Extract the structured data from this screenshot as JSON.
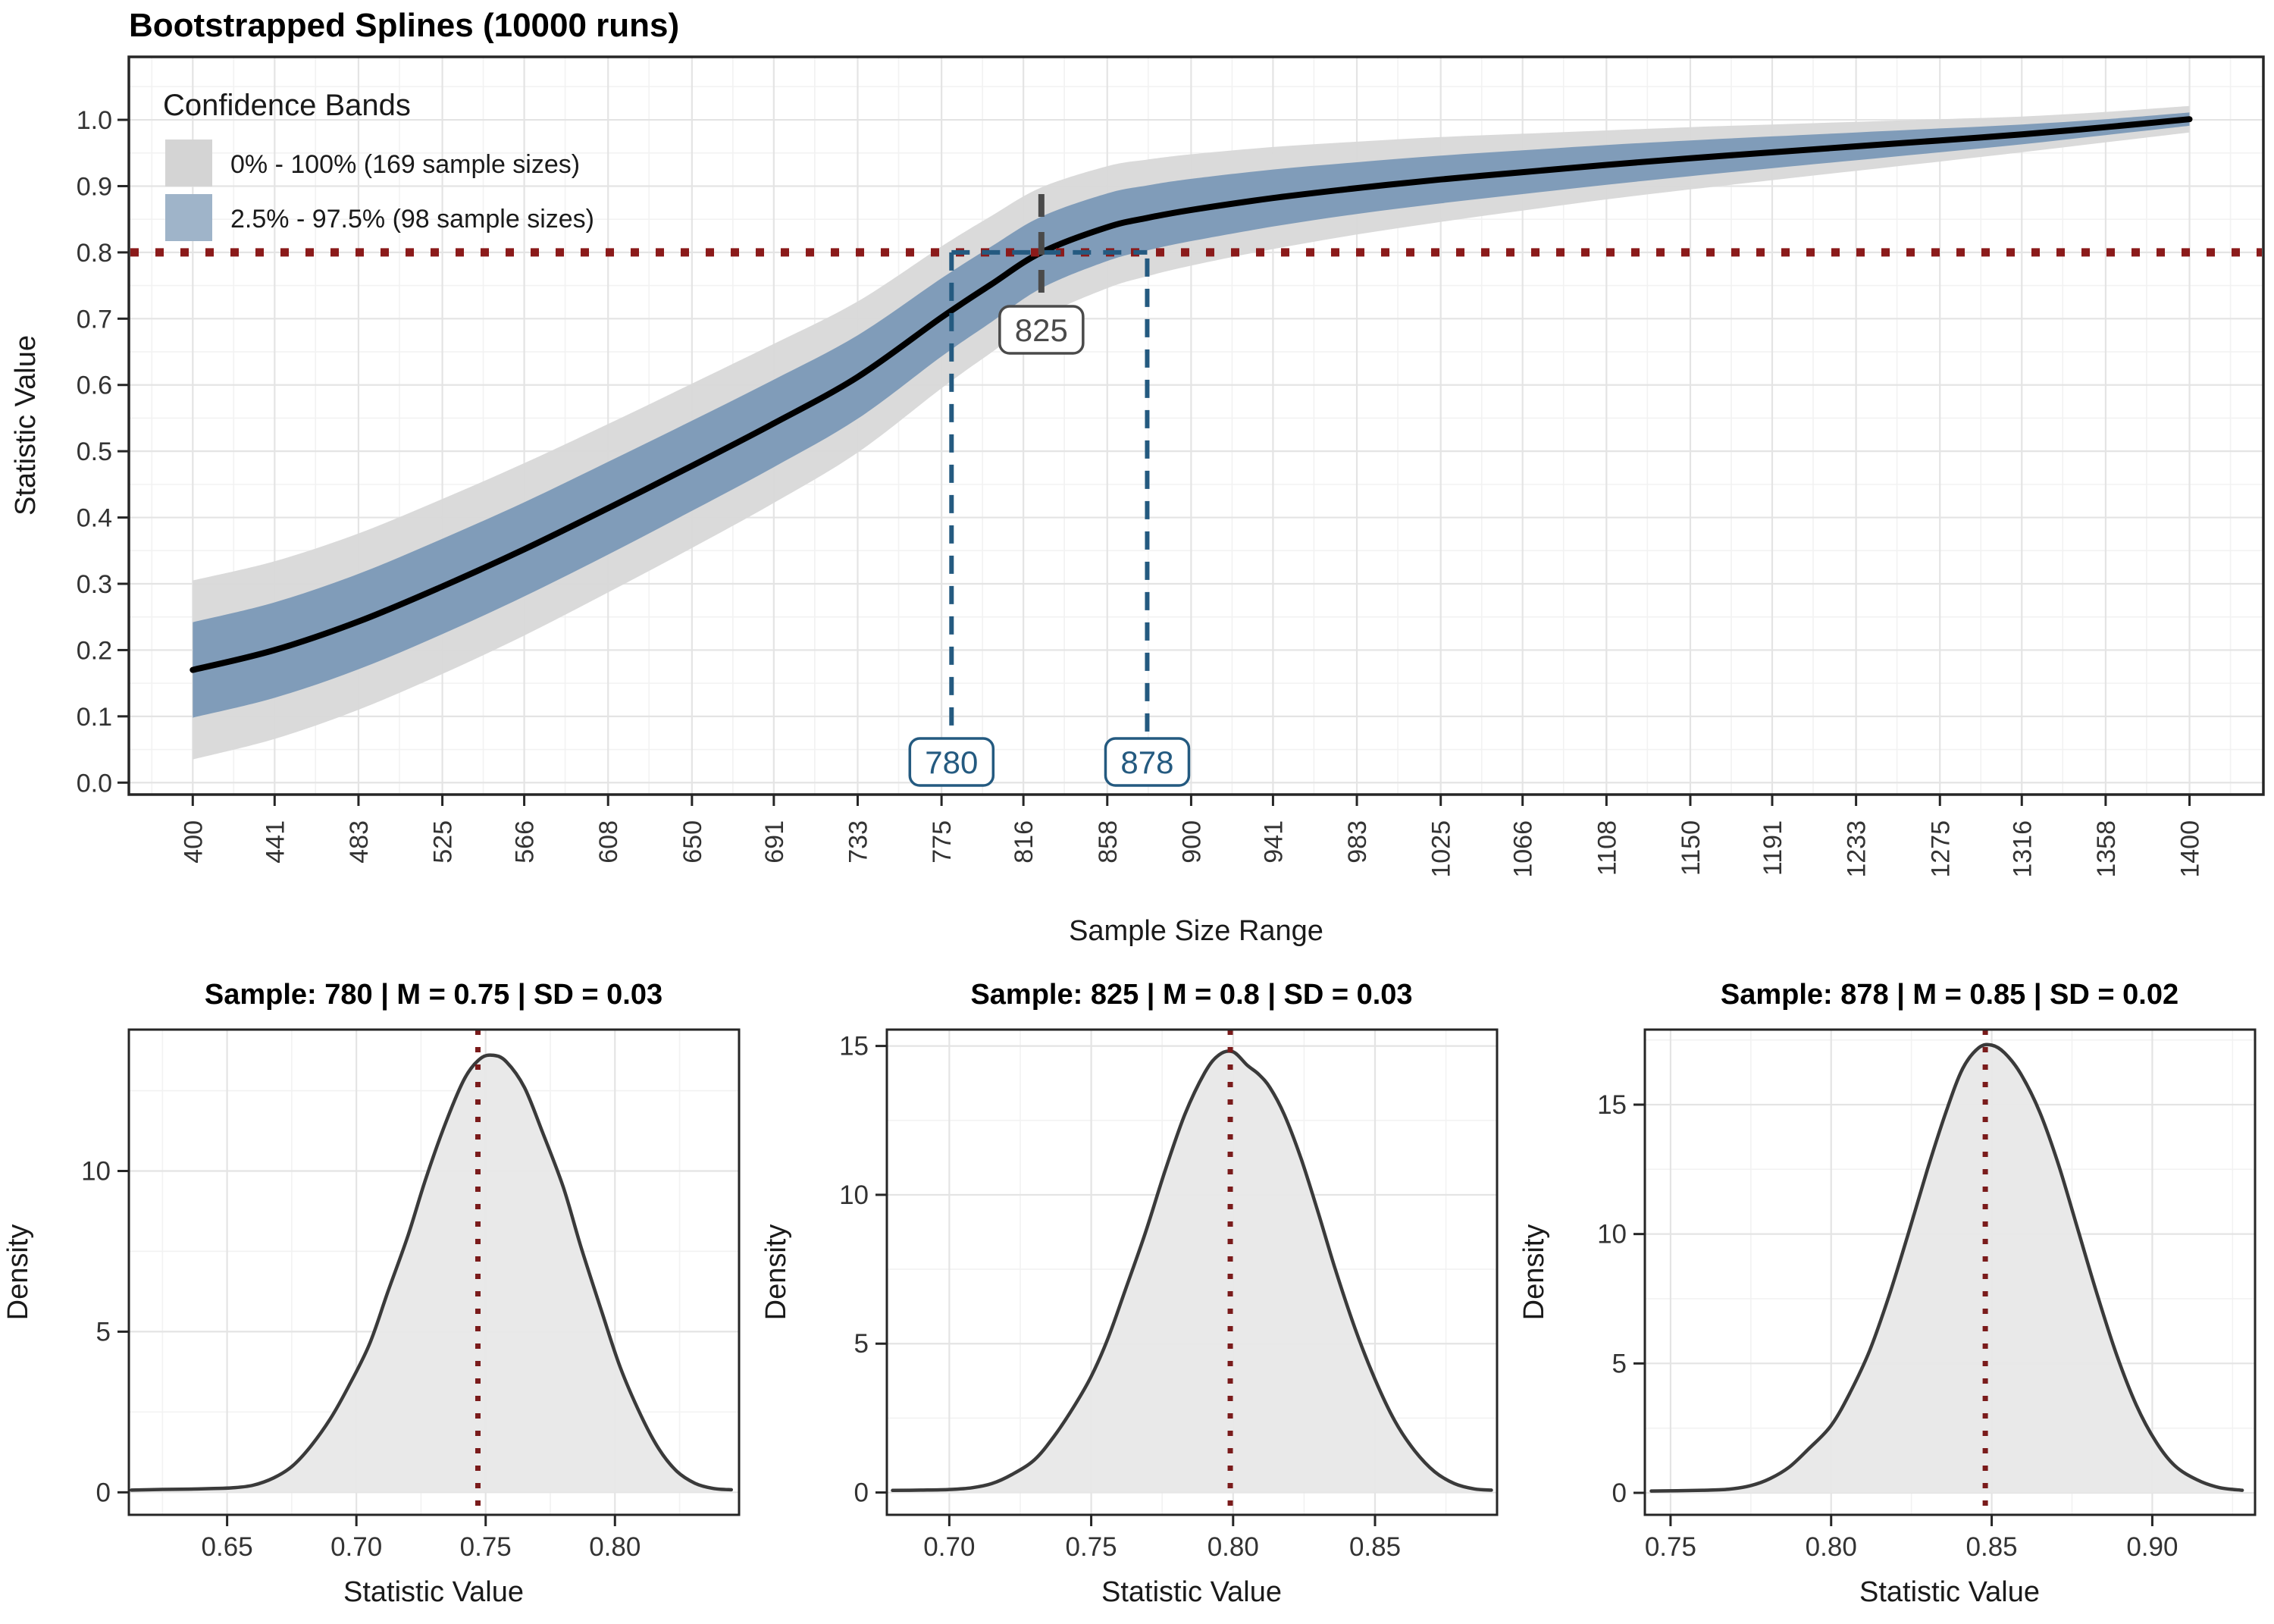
{
  "chart_data": [
    {
      "type": "line",
      "title": "Bootstrapped Splines (10000 runs)",
      "x_label": "Sample Size Range",
      "y_label": "Statistic Value",
      "xlim": [
        368,
        1437
      ],
      "ylim": [
        -0.018,
        1.095
      ],
      "grid": true,
      "legend_position": "inside-top-left",
      "x_ticks": [
        400,
        441,
        483,
        525,
        566,
        608,
        650,
        691,
        733,
        775,
        816,
        858,
        900,
        941,
        983,
        1025,
        1066,
        1108,
        1150,
        1191,
        1233,
        1275,
        1316,
        1358,
        1400
      ],
      "y_ticks": [
        "0.0",
        "0.1",
        "0.2",
        "0.3",
        "0.4",
        "0.5",
        "0.6",
        "0.7",
        "0.8",
        "0.9",
        "1.0"
      ],
      "legend": {
        "title": "Confidence Bands",
        "items": [
          {
            "label": "0% - 100% (169 sample sizes)",
            "color": "#d4d4d4"
          },
          {
            "label": "2.5% - 97.5% (98 sample sizes)",
            "color": "#9fb4c9"
          }
        ]
      },
      "threshold": {
        "y": 0.8,
        "color": "#8b1a1a",
        "style": "dotted"
      },
      "annotations": {
        "mean": {
          "x": 825,
          "label": "825",
          "line_top": 0.888,
          "color": "#4a4a4a"
        },
        "lower": {
          "x": 780,
          "label": "780",
          "color": "#245a80"
        },
        "upper": {
          "x": 878,
          "label": "878",
          "color": "#245a80"
        },
        "ci_segment": {
          "y": 0.8,
          "x1": 780,
          "x2": 878,
          "color": "#245a80"
        }
      },
      "series": {
        "x": [
          400,
          441,
          483,
          525,
          566,
          608,
          650,
          691,
          733,
          775,
          800,
          825,
          858,
          878,
          900,
          941,
          983,
          1025,
          1066,
          1108,
          1150,
          1191,
          1233,
          1275,
          1316,
          1358,
          1400
        ],
        "mean": [
          0.17,
          0.2,
          0.243,
          0.296,
          0.352,
          0.414,
          0.478,
          0.542,
          0.612,
          0.702,
          0.752,
          0.8,
          0.838,
          0.852,
          0.864,
          0.882,
          0.897,
          0.91,
          0.921,
          0.932,
          0.942,
          0.951,
          0.96,
          0.969,
          0.978,
          0.989,
          1.001
        ],
        "blue_hw": [
          0.072,
          0.072,
          0.072,
          0.072,
          0.071,
          0.07,
          0.068,
          0.066,
          0.063,
          0.059,
          0.057,
          0.054,
          0.051,
          0.049,
          0.047,
          0.043,
          0.039,
          0.036,
          0.033,
          0.03,
          0.027,
          0.024,
          0.021,
          0.018,
          0.015,
          0.012,
          0.01
        ],
        "gray_hw": [
          0.135,
          0.134,
          0.133,
          0.132,
          0.13,
          0.127,
          0.124,
          0.12,
          0.114,
          0.107,
          0.103,
          0.098,
          0.092,
          0.088,
          0.084,
          0.077,
          0.07,
          0.064,
          0.058,
          0.052,
          0.047,
          0.042,
          0.037,
          0.032,
          0.027,
          0.023,
          0.02
        ]
      },
      "colors": {
        "gray_band": "#d8d8d8",
        "blue_band": "#7d9ab8",
        "curve": "#000000",
        "panel_border": "#262626",
        "grid_major": "#e4e4e4",
        "grid_minor": "#f2f2f2"
      }
    },
    {
      "type": "area",
      "title": "Sample: 780 | M = 0.75 | SD = 0.03",
      "x_label": "Statistic Value",
      "y_label": "Density",
      "xlim": [
        0.612,
        0.848
      ],
      "ylim": [
        -0.7,
        14.4
      ],
      "x_ticks": [
        0.65,
        0.7,
        0.75,
        0.8
      ],
      "y_ticks": [
        0,
        5,
        10
      ],
      "vline": {
        "x": 0.747,
        "color": "#7a1b1b",
        "style": "dotted"
      },
      "points": [
        [
          0.613,
          0.07
        ],
        [
          0.625,
          0.09
        ],
        [
          0.635,
          0.1
        ],
        [
          0.645,
          0.12
        ],
        [
          0.652,
          0.14
        ],
        [
          0.66,
          0.22
        ],
        [
          0.668,
          0.45
        ],
        [
          0.675,
          0.8
        ],
        [
          0.682,
          1.4
        ],
        [
          0.69,
          2.3
        ],
        [
          0.697,
          3.3
        ],
        [
          0.705,
          4.6
        ],
        [
          0.712,
          6.2
        ],
        [
          0.72,
          8.0
        ],
        [
          0.727,
          9.8
        ],
        [
          0.735,
          11.6
        ],
        [
          0.742,
          12.9
        ],
        [
          0.748,
          13.5
        ],
        [
          0.753,
          13.6
        ],
        [
          0.758,
          13.4
        ],
        [
          0.765,
          12.6
        ],
        [
          0.772,
          11.2
        ],
        [
          0.78,
          9.5
        ],
        [
          0.787,
          7.6
        ],
        [
          0.795,
          5.6
        ],
        [
          0.802,
          3.9
        ],
        [
          0.81,
          2.4
        ],
        [
          0.817,
          1.35
        ],
        [
          0.824,
          0.65
        ],
        [
          0.831,
          0.28
        ],
        [
          0.838,
          0.12
        ],
        [
          0.845,
          0.08
        ]
      ],
      "colors": {
        "fill": "#e8e8e8",
        "stroke": "#3a3a3a"
      }
    },
    {
      "type": "area",
      "title": "Sample: 825 | M = 0.8 | SD = 0.03",
      "x_label": "Statistic Value",
      "y_label": "Density",
      "xlim": [
        0.678,
        0.893
      ],
      "ylim": [
        -0.75,
        15.55
      ],
      "x_ticks": [
        0.7,
        0.75,
        0.8,
        0.85
      ],
      "y_ticks": [
        0,
        5,
        10,
        15
      ],
      "vline": {
        "x": 0.799,
        "color": "#7a1b1b",
        "style": "dotted"
      },
      "points": [
        [
          0.68,
          0.07
        ],
        [
          0.69,
          0.08
        ],
        [
          0.7,
          0.1
        ],
        [
          0.708,
          0.16
        ],
        [
          0.715,
          0.3
        ],
        [
          0.722,
          0.6
        ],
        [
          0.73,
          1.1
        ],
        [
          0.737,
          1.9
        ],
        [
          0.744,
          2.9
        ],
        [
          0.75,
          3.9
        ],
        [
          0.756,
          5.2
        ],
        [
          0.762,
          6.8
        ],
        [
          0.769,
          8.7
        ],
        [
          0.776,
          10.8
        ],
        [
          0.783,
          12.7
        ],
        [
          0.79,
          14.1
        ],
        [
          0.795,
          14.7
        ],
        [
          0.8,
          14.8
        ],
        [
          0.805,
          14.35
        ],
        [
          0.809,
          14.05
        ],
        [
          0.813,
          13.6
        ],
        [
          0.818,
          12.7
        ],
        [
          0.824,
          11.2
        ],
        [
          0.83,
          9.4
        ],
        [
          0.836,
          7.5
        ],
        [
          0.843,
          5.5
        ],
        [
          0.85,
          3.8
        ],
        [
          0.857,
          2.4
        ],
        [
          0.864,
          1.4
        ],
        [
          0.871,
          0.7
        ],
        [
          0.878,
          0.3
        ],
        [
          0.885,
          0.12
        ],
        [
          0.891,
          0.08
        ]
      ],
      "colors": {
        "fill": "#e8e8e8",
        "stroke": "#3a3a3a"
      }
    },
    {
      "type": "area",
      "title": "Sample: 878 | M = 0.85 | SD = 0.02",
      "x_label": "Statistic Value",
      "y_label": "Density",
      "xlim": [
        0.742,
        0.932
      ],
      "ylim": [
        -0.85,
        17.9
      ],
      "x_ticks": [
        0.75,
        0.8,
        0.85,
        0.9
      ],
      "y_ticks": [
        0,
        5,
        10,
        15
      ],
      "vline": {
        "x": 0.848,
        "color": "#7a1b1b",
        "style": "dotted"
      },
      "points": [
        [
          0.744,
          0.07
        ],
        [
          0.752,
          0.08
        ],
        [
          0.76,
          0.1
        ],
        [
          0.768,
          0.14
        ],
        [
          0.775,
          0.28
        ],
        [
          0.781,
          0.55
        ],
        [
          0.787,
          1.0
        ],
        [
          0.793,
          1.7
        ],
        [
          0.8,
          2.6
        ],
        [
          0.806,
          3.9
        ],
        [
          0.812,
          5.5
        ],
        [
          0.818,
          7.6
        ],
        [
          0.824,
          10.0
        ],
        [
          0.83,
          12.5
        ],
        [
          0.836,
          14.8
        ],
        [
          0.841,
          16.4
        ],
        [
          0.846,
          17.2
        ],
        [
          0.85,
          17.3
        ],
        [
          0.854,
          17.0
        ],
        [
          0.859,
          16.2
        ],
        [
          0.865,
          14.7
        ],
        [
          0.871,
          12.6
        ],
        [
          0.877,
          10.1
        ],
        [
          0.883,
          7.6
        ],
        [
          0.889,
          5.3
        ],
        [
          0.895,
          3.4
        ],
        [
          0.901,
          2.0
        ],
        [
          0.907,
          1.05
        ],
        [
          0.914,
          0.5
        ],
        [
          0.921,
          0.2
        ],
        [
          0.928,
          0.1
        ]
      ],
      "colors": {
        "fill": "#e8e8e8",
        "stroke": "#3a3a3a"
      }
    }
  ]
}
